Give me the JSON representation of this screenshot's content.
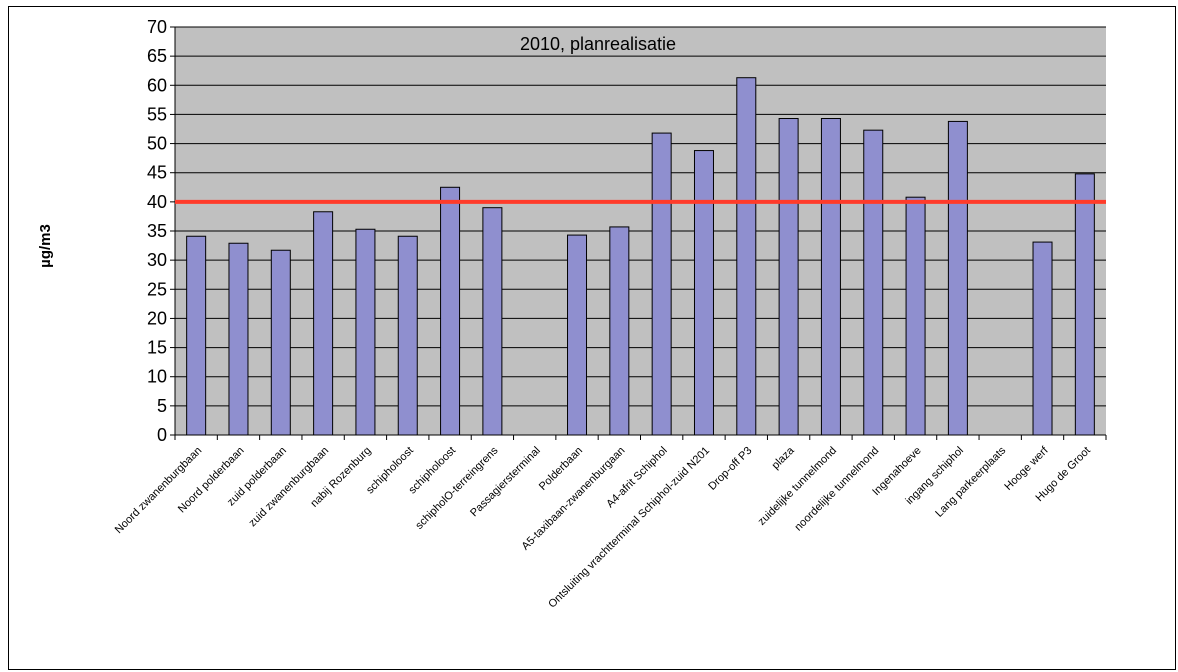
{
  "chart_data": {
    "type": "bar",
    "title": "2010, planrealisatie",
    "xlabel": "",
    "ylabel": "µg/m3",
    "ylim": [
      0,
      70
    ],
    "ytick_step": 5,
    "grid": true,
    "legend": "none",
    "categories": [
      "Noord zwanenburgbaan",
      "Noord polderbaan",
      "zuid polderbaan",
      "zuid zwanenburgbaan",
      "nabij Rozenburg",
      "schipholoost",
      "schipholoost",
      "schipholO-terreingrens",
      "Passagiersterminal",
      "Polderbaan",
      "A5-taxibaan-zwanenburgaan",
      "A4-afrit Schiphol",
      "Ontsluiting vrachtterminal Schiphol-zuid N201",
      "Drop-off P3",
      "plaza",
      "zuidelijke tunnelmond",
      "noordelijke tunnelmond",
      "Ingenahoeve",
      "ingang schiphol",
      "Lang parkeerplaats",
      "Hooge werf",
      "Hugo de Groot"
    ],
    "values": [
      34.1,
      32.9,
      31.7,
      38.3,
      35.3,
      34.1,
      42.5,
      39.0,
      null,
      34.3,
      35.7,
      51.8,
      48.8,
      61.3,
      54.3,
      54.3,
      52.3,
      40.8,
      53.8,
      null,
      33.1,
      44.8
    ],
    "reference_line": 40,
    "colors": {
      "plot_background": "#c0c0c0",
      "bar_fill": "#8f8fcf",
      "bar_stroke": "#000000",
      "reference_line": "#ff3b2a",
      "gridline": "#000000"
    }
  }
}
